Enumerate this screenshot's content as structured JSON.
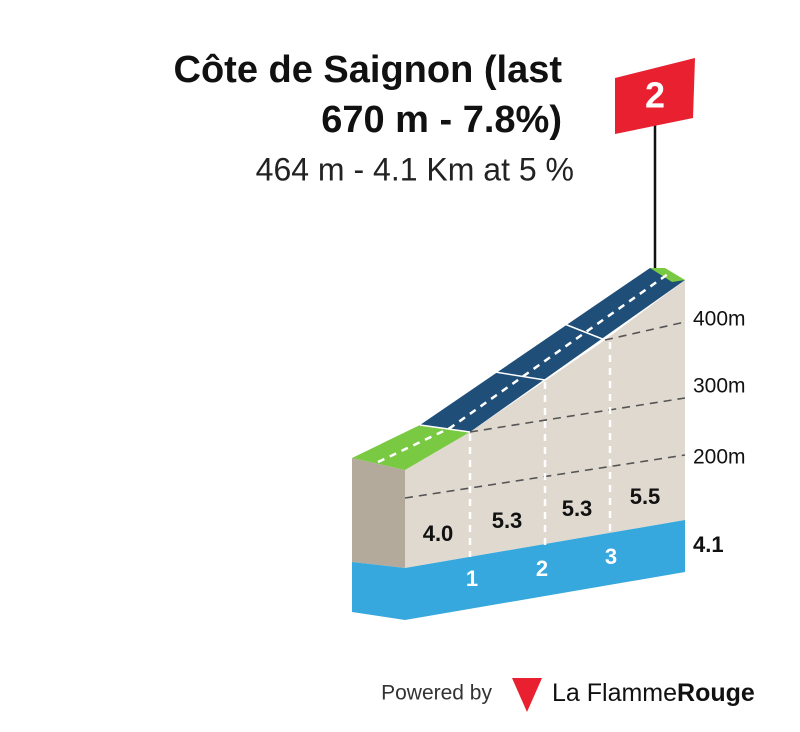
{
  "header": {
    "title_lines": [
      "Côte de Saignon (last",
      "670 m - 7.8%)"
    ],
    "subtitle": "464 m - 4.1 Km at 5 %",
    "category": "2"
  },
  "profile": {
    "altitude_labels": [
      "400m",
      "300m",
      "200m"
    ],
    "gradients": [
      "4.0",
      "5.3",
      "5.3",
      "5.5"
    ],
    "km_markers": [
      "1",
      "2",
      "3"
    ],
    "total_km": "4.1"
  },
  "footer": {
    "powered_by": "Powered by",
    "brand_light": "La Flamme",
    "brand_bold": "Rouge"
  }
}
